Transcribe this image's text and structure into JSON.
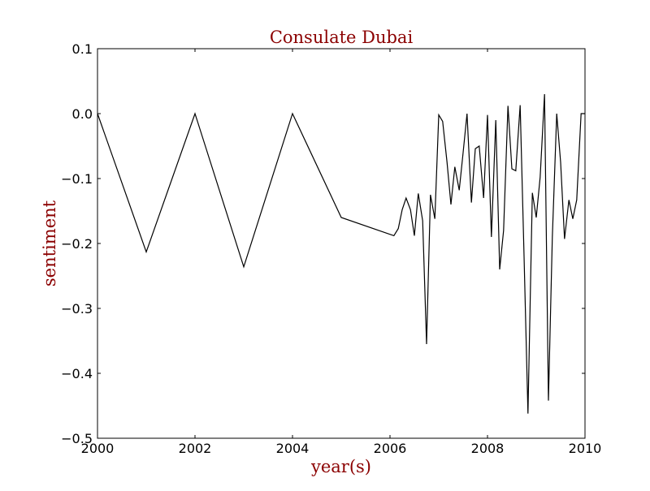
{
  "chart_data": {
    "type": "line",
    "title": "Consulate Dubai",
    "xlabel": "year(s)",
    "ylabel": "sentiment",
    "xlim": [
      2000,
      2010
    ],
    "ylim": [
      -0.5,
      0.1
    ],
    "xticks": [
      2000,
      2002,
      2004,
      2006,
      2008,
      2010
    ],
    "xtick_labels": [
      "2000",
      "2002",
      "2004",
      "2006",
      "2008",
      "2010"
    ],
    "yticks": [
      0.1,
      0.0,
      -0.1,
      -0.2,
      -0.3,
      -0.4,
      -0.5
    ],
    "ytick_labels": [
      "0.1",
      "0.0",
      "−0.1",
      "−0.2",
      "−0.3",
      "−0.4",
      "−0.5"
    ],
    "grid": false,
    "colors": {
      "title": "#8b0000",
      "labels": "#8b0000",
      "line": "#000000"
    },
    "series": [
      {
        "x": [
          2000.0,
          2001.0,
          2002.0,
          2003.0,
          2004.0,
          2005.0,
          2006.08,
          2006.17,
          2006.25,
          2006.33,
          2006.42,
          2006.5,
          2006.58,
          2006.67,
          2006.75,
          2006.83,
          2006.92,
          2007.0,
          2007.08,
          2007.17,
          2007.25,
          2007.33,
          2007.42,
          2007.5,
          2007.58,
          2007.67,
          2007.75,
          2007.83,
          2007.92,
          2008.0,
          2008.08,
          2008.17,
          2008.25,
          2008.33,
          2008.42,
          2008.5,
          2008.58,
          2008.67,
          2008.75,
          2008.83,
          2008.92,
          2009.0,
          2009.08,
          2009.17,
          2009.25,
          2009.33,
          2009.42,
          2009.5,
          2009.58,
          2009.67,
          2009.75,
          2009.83,
          2009.92,
          2010.0
        ],
        "y": [
          0.0,
          -0.213,
          0.0,
          -0.236,
          0.0,
          -0.16,
          -0.188,
          -0.177,
          -0.148,
          -0.13,
          -0.148,
          -0.188,
          -0.123,
          -0.165,
          -0.355,
          -0.125,
          -0.162,
          -0.002,
          -0.012,
          -0.075,
          -0.14,
          -0.082,
          -0.118,
          -0.06,
          0.0,
          -0.137,
          -0.054,
          -0.05,
          -0.13,
          -0.002,
          -0.19,
          -0.01,
          -0.24,
          -0.18,
          0.012,
          -0.085,
          -0.088,
          0.013,
          -0.22,
          -0.462,
          -0.122,
          -0.16,
          -0.098,
          0.03,
          -0.442,
          -0.19,
          0.0,
          -0.075,
          -0.193,
          -0.133,
          -0.162,
          -0.133,
          0.0,
          0.0
        ]
      }
    ]
  }
}
